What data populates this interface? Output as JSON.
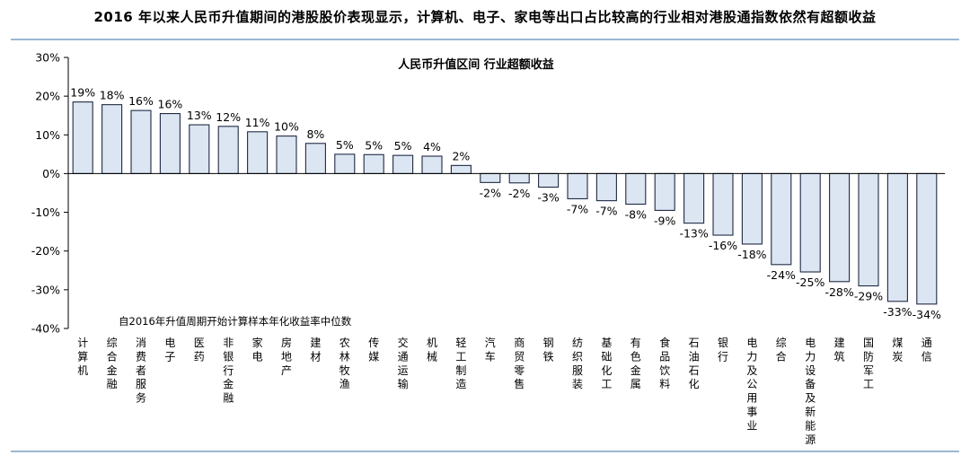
{
  "header": {
    "title": "2016 年以来人民币升值期间的港股股价表现显示，计算机、电子、家电等出口占比较高的行业相对港股通指数依然有超额收益"
  },
  "chart_data": {
    "type": "bar",
    "title": "人民币升值区间 行业超额收益",
    "annotation": "自2016年升值周期开始计算样本年化收益率中位数",
    "categories": [
      "计算机",
      "综合金融",
      "消费者服务",
      "电子",
      "医药",
      "非银行金融",
      "家电",
      "房地产",
      "建材",
      "农林牧渔",
      "传媒",
      "交通运输",
      "机械",
      "轻工制造",
      "汽车",
      "商贸零售",
      "钢铁",
      "纺织服装",
      "基础化工",
      "有色金属",
      "食品饮料",
      "石油石化",
      "银行",
      "电力及公用事业",
      "综合",
      "电力设备及新能源",
      "建筑",
      "国防军工",
      "煤炭",
      "通信"
    ],
    "values": [
      18.5,
      17.8,
      16.3,
      15.5,
      12.6,
      12.2,
      10.8,
      9.7,
      7.8,
      5.0,
      4.9,
      4.7,
      4.5,
      2.1,
      -2.3,
      -2.4,
      -3.5,
      -6.5,
      -7.0,
      -7.9,
      -9.5,
      -12.8,
      -15.9,
      -18.2,
      -23.5,
      -25.4,
      -27.9,
      -29.0,
      -33.0,
      -33.7
    ],
    "value_labels": [
      "19%",
      "18%",
      "16%",
      "16%",
      "13%",
      "12%",
      "11%",
      "10%",
      "8%",
      "5%",
      "5%",
      "5%",
      "4%",
      "2%",
      "-2%",
      "-2%",
      "-3%",
      "-7%",
      "-7%",
      "-8%",
      "-9%",
      "-13%",
      "-16%",
      "-18%",
      "-24%",
      "-25%",
      "-28%",
      "-29%",
      "-33%",
      "-34%"
    ],
    "yticks": [
      "30%",
      "20%",
      "10%",
      "0%",
      "-10%",
      "-20%",
      "-30%",
      "-40%"
    ],
    "ylim": [
      -40,
      30
    ],
    "bar_fill": "#dce6f2",
    "bar_stroke": "#1f2a44",
    "grid": false,
    "legend": "none"
  }
}
